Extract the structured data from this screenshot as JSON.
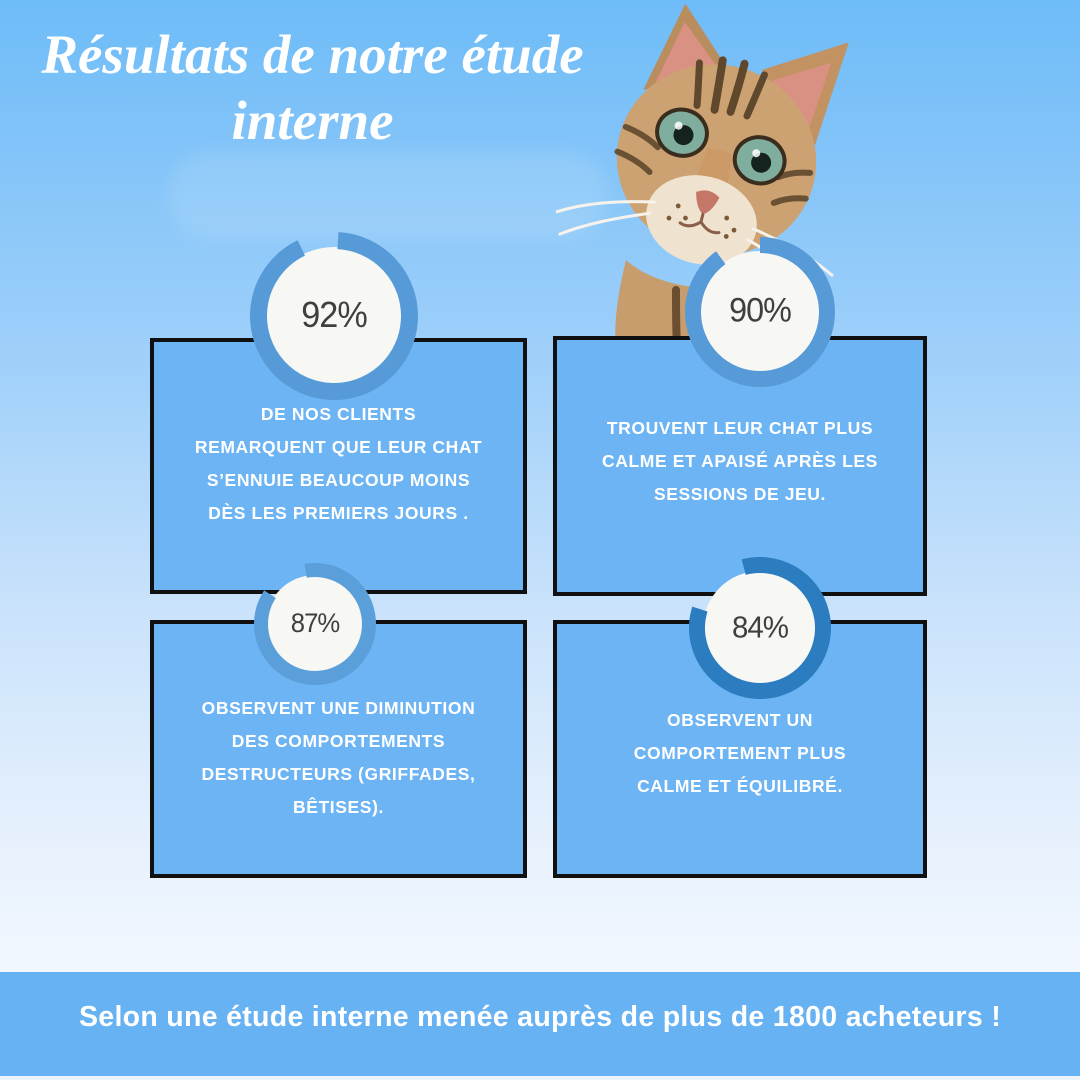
{
  "title": "Résultats de notre étude interne",
  "banner": {
    "text": "Selon une étude interne menée auprès de plus de 1800 acheteurs !"
  },
  "colors": {
    "card_blue": "#6cb4f4",
    "banner_blue": "#66b2f3",
    "card_border": "#101010",
    "donut_inner": "#f7f7f4",
    "ring_blue": "#569bd8",
    "ring_dark_blue": "#2c7cc0",
    "text_white": "#ffffff",
    "pct_text": "#3f3f3f"
  },
  "chart_data": {
    "type": "pie",
    "subtype": "donut-percentages",
    "title": "Résultats de notre étude interne",
    "legend_position": "none",
    "series": [
      {
        "label": "92%",
        "value": 92,
        "text": "DE NOS CLIENTS REMARQUENT QUE LEUR CHAT S’ENNUIE BEAUCOUP MOINS DÈS LES PREMIERS JOURS ."
      },
      {
        "label": "90%",
        "value": 90,
        "text": "TROUVENT LEUR CHAT PLUS CALME ET APAISÉ APRÈS LES SESSIONS DE JEU."
      },
      {
        "label": "87%",
        "value": 87,
        "text": "OBSERVENT UNE DIMINUTION DES COMPORTEMENTS DESTRUCTEURS (GRIFFADES, BÊTISES)."
      },
      {
        "label": "84%",
        "value": 84,
        "text": "OBSERVENT UN COMPORTEMENT PLUS CALME ET ÉQUILIBRÉ."
      }
    ],
    "ring_colors": [
      "#569bd8",
      "#569bd8",
      "#5b9fda",
      "#2c7cc0"
    ]
  }
}
